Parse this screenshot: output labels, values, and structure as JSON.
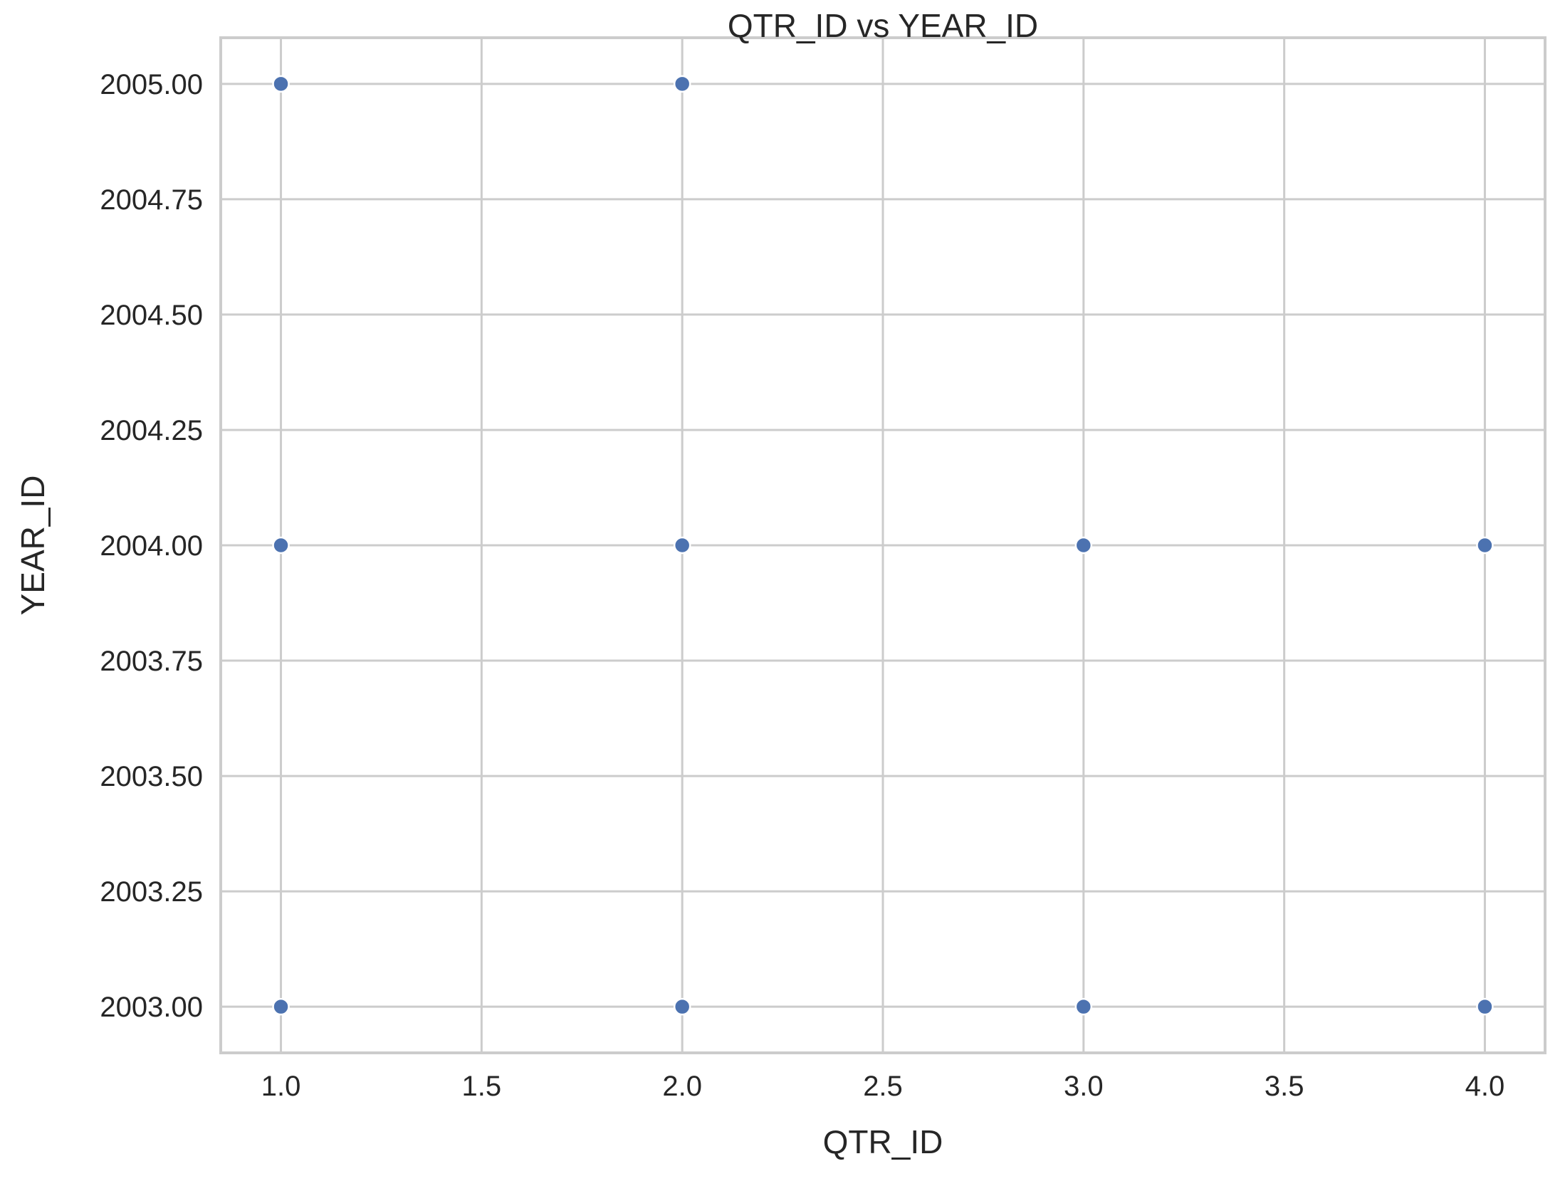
{
  "chart_data": {
    "type": "scatter",
    "title": "QTR_ID vs YEAR_ID",
    "xlabel": "QTR_ID",
    "ylabel": "YEAR_ID",
    "xlim": [
      0.85,
      4.15
    ],
    "ylim": [
      2002.9,
      2005.1
    ],
    "xticks": [
      1.0,
      1.5,
      2.0,
      2.5,
      3.0,
      3.5,
      4.0
    ],
    "xtick_labels": [
      "1.0",
      "1.5",
      "2.0",
      "2.5",
      "3.0",
      "3.5",
      "4.0"
    ],
    "yticks": [
      2003.0,
      2003.25,
      2003.5,
      2003.75,
      2004.0,
      2004.25,
      2004.5,
      2004.75,
      2005.0
    ],
    "ytick_labels": [
      "2003.00",
      "2003.25",
      "2003.50",
      "2003.75",
      "2004.00",
      "2004.25",
      "2004.50",
      "2004.75",
      "2005.00"
    ],
    "grid": true,
    "point_color": "#4c72b0",
    "points": [
      {
        "x": 1,
        "y": 2005
      },
      {
        "x": 2,
        "y": 2005
      },
      {
        "x": 1,
        "y": 2004
      },
      {
        "x": 2,
        "y": 2004
      },
      {
        "x": 3,
        "y": 2004
      },
      {
        "x": 4,
        "y": 2004
      },
      {
        "x": 1,
        "y": 2003
      },
      {
        "x": 2,
        "y": 2003
      },
      {
        "x": 3,
        "y": 2003
      },
      {
        "x": 4,
        "y": 2003
      }
    ]
  }
}
